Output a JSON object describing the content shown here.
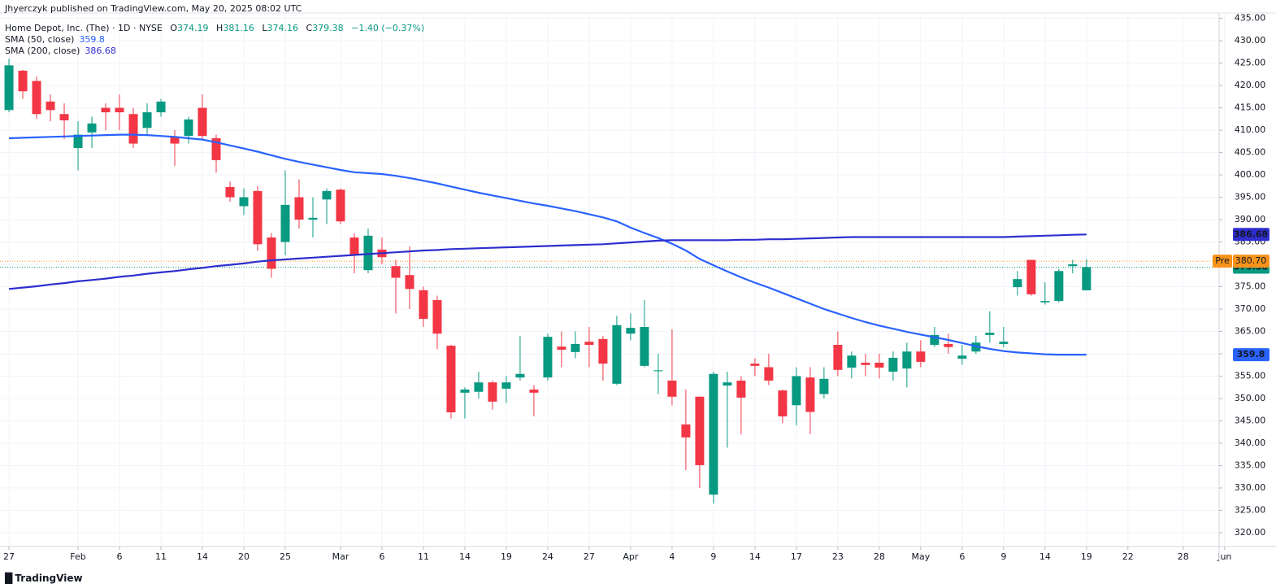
{
  "chart_data": {
    "type": "candlestick",
    "attribution": "Jhyerczyk published on TradingView.com, May 20, 2025 08:02 UTC",
    "symbol": "Home Depot, Inc. (The) · 1D · NYSE",
    "ohlc_labels": [
      "O",
      "H",
      "L",
      "C"
    ],
    "change": "−1.40 (−0.37%)",
    "source_logo": "TradingView",
    "up_color": "#089981",
    "down_color": "#f23645",
    "grid": true,
    "xlim": [
      -0.65,
      87.6
    ],
    "ylim": [
      316.9,
      436.2
    ],
    "xticks": [
      {
        "value": 0,
        "label": "27"
      },
      {
        "value": 5,
        "label": "Feb"
      },
      {
        "value": 8,
        "label": "6"
      },
      {
        "value": 11,
        "label": "11"
      },
      {
        "value": 14,
        "label": "14"
      },
      {
        "value": 17,
        "label": "20"
      },
      {
        "value": 20,
        "label": "25"
      },
      {
        "value": 24,
        "label": "Mar"
      },
      {
        "value": 27,
        "label": "6"
      },
      {
        "value": 30,
        "label": "11"
      },
      {
        "value": 33,
        "label": "14"
      },
      {
        "value": 36,
        "label": "19"
      },
      {
        "value": 39,
        "label": "24"
      },
      {
        "value": 42,
        "label": "27"
      },
      {
        "value": 45,
        "label": "Apr"
      },
      {
        "value": 48,
        "label": "4"
      },
      {
        "value": 51,
        "label": "9"
      },
      {
        "value": 54,
        "label": "14"
      },
      {
        "value": 57,
        "label": "17"
      },
      {
        "value": 60,
        "label": "23"
      },
      {
        "value": 63,
        "label": "28"
      },
      {
        "value": 66,
        "label": "May"
      },
      {
        "value": 69,
        "label": "6"
      },
      {
        "value": 72,
        "label": "9"
      },
      {
        "value": 75,
        "label": "14"
      },
      {
        "value": 78,
        "label": "19"
      },
      {
        "value": 81,
        "label": "22"
      },
      {
        "value": 85,
        "label": "28"
      },
      {
        "value": 88,
        "label": "Jun"
      }
    ],
    "yticks": [
      {
        "value": 320,
        "label": "320.00"
      },
      {
        "value": 325,
        "label": "325.00"
      },
      {
        "value": 330,
        "label": "330.00"
      },
      {
        "value": 335,
        "label": "335.00"
      },
      {
        "value": 340,
        "label": "340.00"
      },
      {
        "value": 345,
        "label": "345.00"
      },
      {
        "value": 350,
        "label": "350.00"
      },
      {
        "value": 355,
        "label": "355.00"
      },
      {
        "value": 360,
        "label": "360.00"
      },
      {
        "value": 365,
        "label": "365.00"
      },
      {
        "value": 370,
        "label": "370.00"
      },
      {
        "value": 375,
        "label": "375.00"
      },
      {
        "value": 380,
        "label": "380.00"
      },
      {
        "value": 385,
        "label": "385.00"
      },
      {
        "value": 390,
        "label": "390.00"
      },
      {
        "value": 395,
        "label": "395.00"
      },
      {
        "value": 400,
        "label": "400.00"
      },
      {
        "value": 405,
        "label": "405.00"
      },
      {
        "value": 410,
        "label": "410.00"
      },
      {
        "value": 415,
        "label": "415.00"
      },
      {
        "value": 420,
        "label": "420.00"
      },
      {
        "value": 425,
        "label": "425.00"
      },
      {
        "value": 430,
        "label": "430.00"
      },
      {
        "value": 435,
        "label": "435.00"
      }
    ],
    "candles": {
      "open": [
        414.5,
        423.3,
        421,
        416.4,
        413.6,
        406,
        409.5,
        415,
        415,
        413.6,
        410.5,
        414,
        408.5,
        408.7,
        415,
        408.2,
        397.3,
        393,
        396.4,
        386,
        385,
        395,
        390,
        394.5,
        396.7,
        386,
        378.7,
        383.3,
        379.6,
        377.6,
        374.2,
        372,
        361.8,
        351.3,
        351.5,
        353.6,
        352.2,
        354.7,
        352,
        354.7,
        361.6,
        360.4,
        362.7,
        363.3,
        353.3,
        364.5,
        357.3,
        356.1,
        354,
        344.2,
        350.4,
        328.5,
        352.9,
        354,
        357.8,
        357,
        351.8,
        348.5,
        354.7,
        351,
        362,
        356.9,
        358,
        358,
        356,
        356.7,
        360.5,
        362,
        362.2,
        358.9,
        360.5,
        364.2,
        362.2,
        374.9,
        381,
        371.5,
        371.8,
        379.6,
        374.19
      ],
      "high": [
        426,
        423.5,
        422,
        418,
        416,
        412,
        413,
        416,
        418,
        415,
        416,
        417,
        410,
        413,
        418,
        409,
        398.5,
        397,
        397.5,
        387,
        401,
        399,
        395,
        397,
        397,
        387,
        388,
        386,
        381,
        384,
        375,
        373,
        362,
        352.5,
        356,
        354,
        355,
        364,
        353,
        364.5,
        365,
        365,
        366,
        364,
        368.5,
        369,
        372,
        360,
        365.5,
        352,
        350.5,
        356,
        356,
        355,
        359,
        360,
        352,
        357,
        357,
        357,
        365,
        360.5,
        360,
        360,
        360.5,
        362.5,
        363,
        366,
        364.5,
        362,
        364,
        369.5,
        366,
        378.5,
        381,
        376,
        379,
        381,
        381.16
      ],
      "low": [
        414,
        417,
        412.5,
        412,
        408,
        401,
        406,
        410,
        410,
        406,
        409,
        413,
        402,
        407,
        408,
        400.5,
        394,
        391,
        383,
        377,
        382,
        388,
        386,
        389,
        389,
        378,
        378,
        380,
        369,
        370,
        366,
        361,
        345.5,
        345.5,
        350,
        347.5,
        349,
        354,
        346,
        354,
        357,
        359,
        357,
        354,
        353,
        363,
        357,
        351,
        348.5,
        334,
        330,
        326.5,
        339,
        342,
        355,
        353,
        344.5,
        344,
        342,
        350,
        355,
        354.5,
        355,
        354.5,
        354,
        352.5,
        357,
        361.5,
        360,
        357.5,
        360,
        362.5,
        361.5,
        373,
        373,
        371,
        371.5,
        378,
        374.16
      ],
      "close": [
        424.5,
        418.7,
        413.6,
        414.5,
        412.2,
        409,
        411.5,
        414,
        414,
        407,
        414,
        416.4,
        407,
        412.4,
        408.7,
        403.3,
        395,
        395,
        384.5,
        379,
        393.3,
        390,
        390.4,
        396.4,
        389.6,
        382,
        386.4,
        381.6,
        377,
        374.5,
        367.8,
        364.5,
        346.9,
        352,
        353.6,
        349.3,
        353.6,
        355.5,
        351.3,
        363.8,
        360.9,
        362.2,
        362,
        357.8,
        366.4,
        365.8,
        366,
        356.3,
        350.4,
        341.3,
        335.1,
        355.5,
        353.6,
        350.2,
        357.3,
        354,
        346,
        355,
        347,
        354.4,
        356.4,
        359.6,
        357.5,
        356.9,
        359.1,
        360.5,
        358.2,
        364.2,
        361.5,
        359.6,
        362.5,
        364.7,
        362.7,
        376.7,
        373.3,
        371.8,
        378.5,
        380,
        379.38
      ]
    },
    "series": [
      {
        "name": "SMA (50, close)",
        "color": "#2962ff",
        "values": [
          408.2,
          408.3,
          408.4,
          408.5,
          408.6,
          408.7,
          408.8,
          408.9,
          409,
          409,
          408.9,
          408.7,
          408.5,
          408.2,
          407.9,
          407.3,
          406.6,
          405.9,
          405.2,
          404.4,
          403.6,
          402.9,
          402.3,
          401.7,
          401.1,
          400.6,
          400.4,
          400.2,
          399.8,
          399.3,
          398.7,
          398.1,
          397.4,
          396.7,
          396,
          395.4,
          394.8,
          394.2,
          393.6,
          393.1,
          392.5,
          391.9,
          391.2,
          390.5,
          389.6,
          388.2,
          387,
          385.9,
          384.6,
          383.1,
          381.2,
          379.8,
          378.4,
          377.1,
          375.9,
          374.8,
          373.6,
          372.4,
          371.2,
          370,
          369,
          368,
          367.1,
          366.3,
          365.6,
          364.9,
          364.3,
          363.7,
          363.1,
          362.4,
          361.7,
          361.1,
          360.6,
          360.3,
          360.1,
          359.9,
          359.8,
          359.8,
          359.8
        ]
      },
      {
        "name": "SMA (200, close)",
        "color": "#2e2ecf",
        "values": [
          374.5,
          374.8,
          375.1,
          375.5,
          375.8,
          376.2,
          376.5,
          376.8,
          377.2,
          377.5,
          377.9,
          378.2,
          378.5,
          378.9,
          379.2,
          379.6,
          379.9,
          380.2,
          380.6,
          380.9,
          381.1,
          381.3,
          381.5,
          381.7,
          381.9,
          382.1,
          382.3,
          382.5,
          382.7,
          382.9,
          383.1,
          383.2,
          383.4,
          383.5,
          383.6,
          383.7,
          383.8,
          383.9,
          384,
          384.1,
          384.2,
          384.3,
          384.4,
          384.5,
          384.7,
          384.9,
          385.1,
          385.3,
          385.4,
          385.4,
          385.4,
          385.4,
          385.4,
          385.5,
          385.5,
          385.6,
          385.6,
          385.7,
          385.8,
          385.9,
          386,
          386.1,
          386.1,
          386.1,
          386.1,
          386.1,
          386.1,
          386.1,
          386.1,
          386.1,
          386.1,
          386.1,
          386.1,
          386.2,
          386.3,
          386.4,
          386.5,
          386.6,
          386.68
        ]
      }
    ],
    "premarket": {
      "label": "Pre",
      "value": 380.7,
      "value_label": "380.70",
      "color": "#f7931a"
    }
  }
}
